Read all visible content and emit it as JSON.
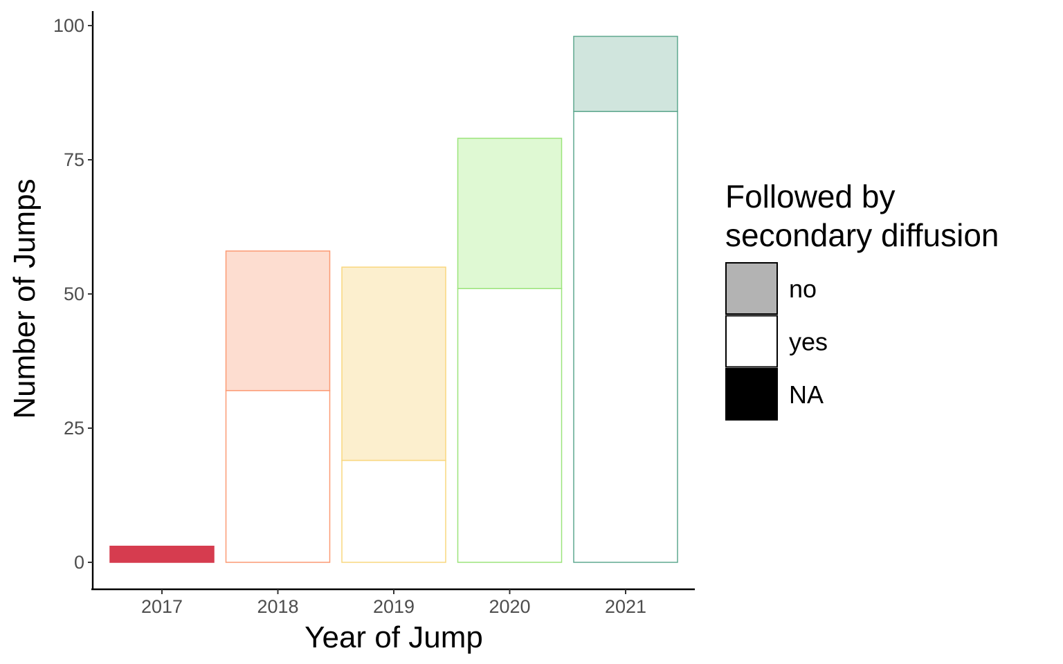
{
  "chart_data": {
    "type": "bar",
    "stacked": true,
    "xlabel": "Year of Jump",
    "ylabel": "Number of Jumps",
    "ylim": [
      0,
      100
    ],
    "yticks": [
      0,
      25,
      50,
      75,
      100
    ],
    "categories": [
      "2017",
      "2018",
      "2019",
      "2020",
      "2021"
    ],
    "series": [
      {
        "name": "no",
        "values": [
          0,
          26,
          36,
          28,
          14
        ]
      },
      {
        "name": "yes",
        "values": [
          0,
          32,
          19,
          51,
          84
        ]
      },
      {
        "name": "NA",
        "values": [
          3,
          0,
          0,
          0,
          0
        ]
      }
    ],
    "year_colors": [
      "#d63c4f",
      "#fc9972",
      "#f9d77e",
      "#9be47a",
      "#5fa88f"
    ],
    "year_fill_no": [
      "#d63c4f",
      "#fdddd0",
      "#fcefce",
      "#dff9d3",
      "#d0e5dd"
    ],
    "legend": {
      "title_lines": [
        "Followed by",
        "secondary diffusion"
      ],
      "placement": "right",
      "entries": [
        {
          "label": "no",
          "color": "#b3b3b3"
        },
        {
          "label": "yes",
          "color": "#ffffff"
        },
        {
          "label": "NA",
          "color": "#000000"
        }
      ]
    },
    "grid": false
  }
}
